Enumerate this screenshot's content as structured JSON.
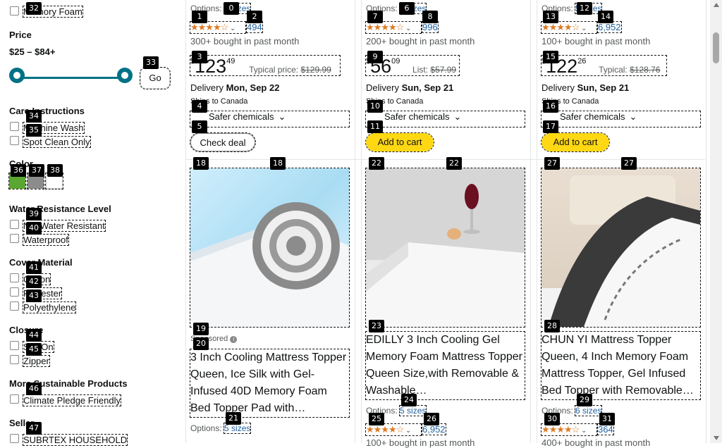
{
  "filters": {
    "memory_foam": {
      "label": "Memory Foam",
      "tag": "32"
    },
    "price": {
      "title": "Price",
      "range": "$25 – $84+",
      "go_label": "Go",
      "go_tag": "33",
      "range_min_fraction": 0.0,
      "range_max_fraction": 1.0
    },
    "care": {
      "title": "Care Instructions",
      "items": [
        {
          "label": "Machine Wash",
          "tag": "34"
        },
        {
          "label": "Spot Clean Only",
          "tag": "35"
        }
      ]
    },
    "color": {
      "title": "Color",
      "swatches": [
        {
          "name": "green",
          "color": "#5aa832",
          "tag": "36"
        },
        {
          "name": "gray",
          "color": "#8c8c8c",
          "tag": "37"
        },
        {
          "name": "white",
          "color": "#ffffff",
          "tag": "38"
        }
      ]
    },
    "water": {
      "title": "Water Resistance Level",
      "items": [
        {
          "label": "Not Water Resistant",
          "tag": "39"
        },
        {
          "label": "Waterproof",
          "tag": "40"
        }
      ]
    },
    "cover": {
      "title": "Cover Material",
      "items": [
        {
          "label": "Cotton",
          "tag": "41"
        },
        {
          "label": "Polyester",
          "tag": "42"
        },
        {
          "label": "Polyethylene",
          "tag": "43"
        }
      ]
    },
    "closure": {
      "title": "Closure",
      "items": [
        {
          "label": "Slip On",
          "tag": "44"
        },
        {
          "label": "Zipper",
          "tag": "45"
        }
      ]
    },
    "sustainable": {
      "title": "More Sustainable Products",
      "items": [
        {
          "label": "Climate Pledge Friendly",
          "tag": "46"
        }
      ]
    },
    "seller": {
      "title": "Seller",
      "items": [
        {
          "label": "SUBRTEX HOUSEHOLD",
          "tag": "47"
        }
      ]
    }
  },
  "top_cards": [
    {
      "options_label": "Options:",
      "sizes": "6 sizes",
      "rating": "4.3",
      "reviews": "494",
      "bought": "300+ bought in past month",
      "price_whole": "123",
      "price_frac": "49",
      "price_prefix": "$",
      "compare_label": "Typical price:",
      "compare_price": "$129.99",
      "delivery_label": "Delivery",
      "delivery_date": "Mon, Sep 22",
      "ships": "Ships to Canada",
      "safer": "Safer chemicals",
      "button": "Check deal",
      "button_type": "white",
      "tags": {
        "options": "0",
        "stars": "1",
        "reviews": "2",
        "price": "3",
        "safer": "4",
        "button": "5"
      }
    },
    {
      "options_label": "Options:",
      "sizes": "3 sizes",
      "rating": "4.4",
      "reviews": "996",
      "bought": "200+ bought in past month",
      "price_whole": "56",
      "price_frac": "09",
      "price_prefix": "$",
      "compare_label": "List:",
      "compare_price": "$57.99",
      "delivery_label": "Delivery",
      "delivery_date": "Sun, Sep 21",
      "ships": "Ships to Canada",
      "safer": "Safer chemicals",
      "button": "Add to cart",
      "button_type": "yellow",
      "tags": {
        "options": "6",
        "stars": "7",
        "reviews": "8",
        "price": "9",
        "safer": "10",
        "button": "11"
      }
    },
    {
      "options_label": "Options:",
      "sizes": "5 sizes",
      "rating": "4.4",
      "reviews": "6,952",
      "bought": "100+ bought in past month",
      "price_whole": "122",
      "price_frac": "26",
      "price_prefix": "$",
      "compare_label": "Typical:",
      "compare_price": "$128.76",
      "delivery_label": "Delivery",
      "delivery_date": "Sun, Sep 21",
      "ships": "Ships to Canada",
      "safer": "Safer chemicals",
      "button": "Add to cart",
      "button_type": "yellow",
      "tags": {
        "options": "12",
        "stars": "13",
        "reviews": "14",
        "price": "15",
        "safer": "16",
        "button": "17"
      }
    }
  ],
  "bottom_cards": [
    {
      "sponsored": "Sponsored",
      "title": "3 Inch Cooling Mattress Topper Queen, Ice Silk with Gel-Infused 40D Memory Foam Bed Topper Pad with…",
      "options_label": "Options:",
      "sizes": "5 sizes",
      "tags": {
        "img_a": "18",
        "img_b": "18",
        "sponsored_a": "19",
        "sponsored_b": "20",
        "sizes": "21"
      }
    },
    {
      "title": "EDILLY 3 Inch Cooling Gel Memory Foam Mattress Topper Queen Size,with Removable & Washable…",
      "options_label": "Options:",
      "sizes": "5 sizes",
      "rating": "4.4",
      "reviews": "6,952",
      "bought": "100+ bought in past month",
      "tags": {
        "img_a": "22",
        "img_b": "22",
        "title": "23",
        "sizes": "24",
        "stars": "25",
        "reviews": "26"
      }
    },
    {
      "title": "CHUN YI Mattress Topper Queen, 4 Inch Memory Foam Mattress Topper, Gel Infused Bed Topper with Removable…",
      "options_label": "Options:",
      "sizes": "6 sizes",
      "rating": "4.3",
      "reviews": "364",
      "bought": "400+ bought in past month",
      "tags": {
        "img_a": "27",
        "img_b": "27",
        "title": "28",
        "sizes": "29",
        "stars": "30",
        "reviews": "31"
      }
    }
  ],
  "colors": {
    "accent_link": "#2162a1",
    "star": "#de7921",
    "slider": "#007185",
    "cart_button": "#ffd814"
  }
}
